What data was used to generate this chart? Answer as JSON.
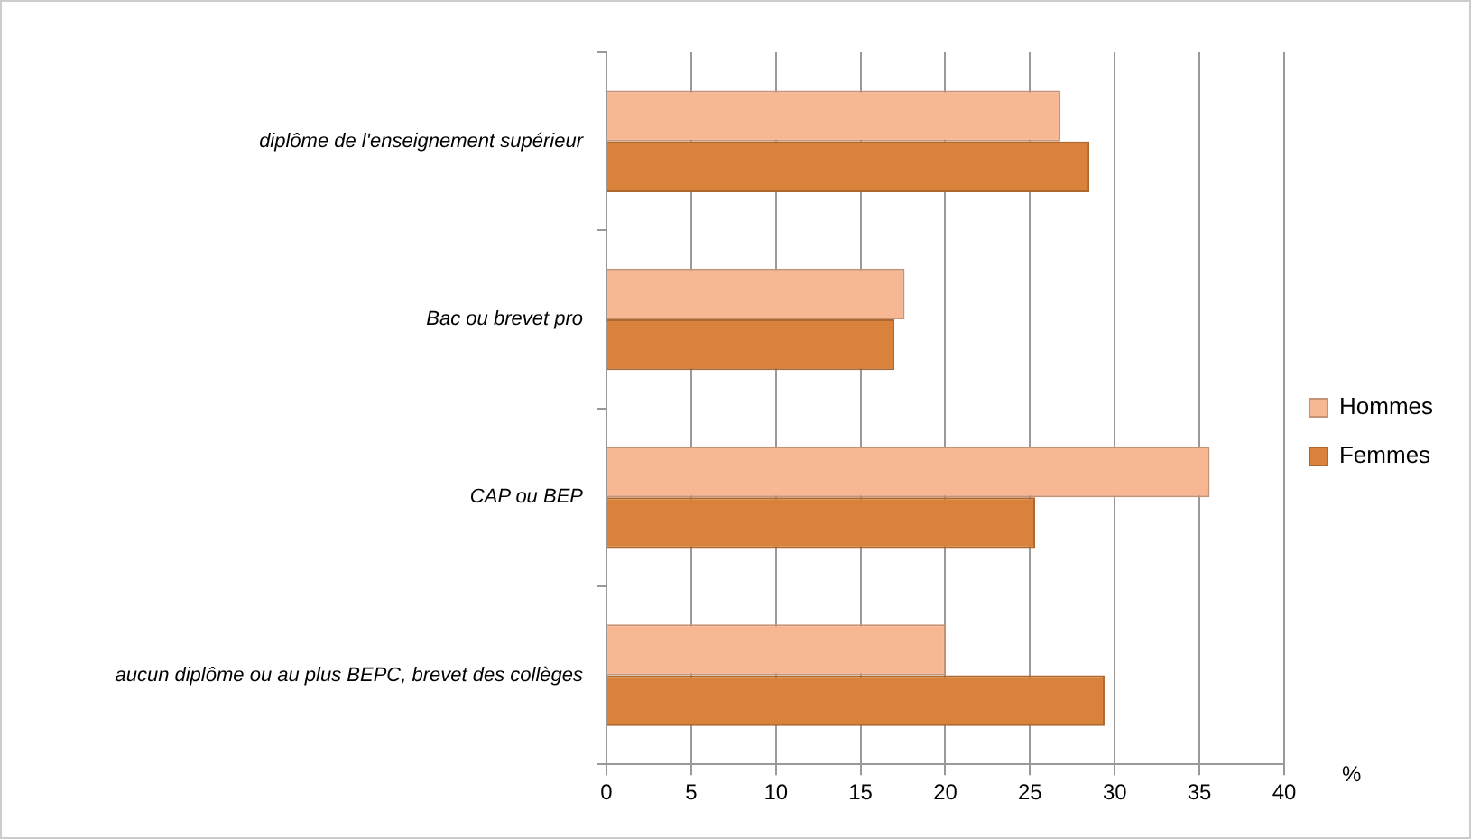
{
  "chart_data": {
    "type": "bar",
    "orientation": "horizontal",
    "categories": [
      "diplôme de l'enseignement supérieur",
      "Bac ou brevet pro",
      "CAP ou BEP",
      "aucun diplôme ou au plus BEPC, brevet des collèges"
    ],
    "series": [
      {
        "name": "Hommes",
        "color": "#f8b793",
        "values": [
          26.8,
          17.6,
          35.6,
          20.0
        ]
      },
      {
        "name": "Femmes",
        "color": "#d9823b",
        "values": [
          28.5,
          17.0,
          25.3,
          29.4
        ]
      }
    ],
    "xlim": [
      0,
      40
    ],
    "xticks": [
      0,
      5,
      10,
      15,
      20,
      25,
      30,
      35,
      40
    ],
    "xlabel": "%",
    "grid": "x",
    "legend": "right"
  }
}
